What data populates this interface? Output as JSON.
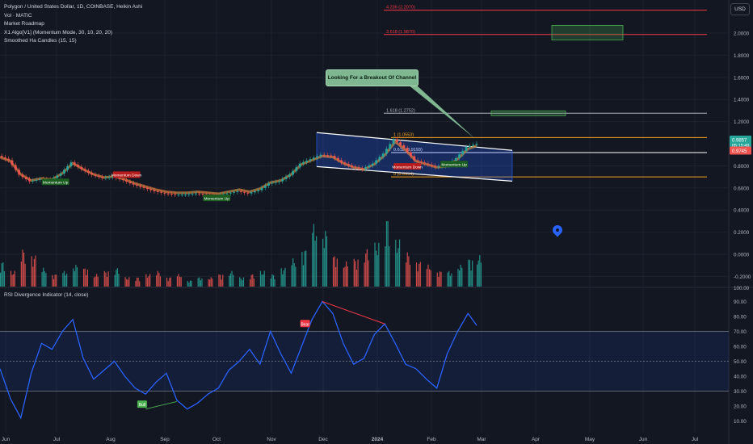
{
  "legend": {
    "symbol": "Polygon / United States Dollar, 1D, COINBASE, Heikin Ashi",
    "vol": "Vol · MATIC",
    "indicators": [
      "Market Roadmap",
      "X1 Algo[V1] (Momentum Mode, 30, 10, 20, 20)",
      "Smoothed Ha Candles (15, 15)"
    ]
  },
  "currency_button": "USD",
  "callout": "Looking For a Breakout Of Channel",
  "colors": {
    "up": "#26a69a",
    "down": "#ef5350",
    "rsi": "#2962ff",
    "fib": "#f7a21b",
    "channel": "#ffffff",
    "accent": "#787b86"
  },
  "chart_data": [
    {
      "type": "line",
      "panel": "price",
      "x_ticks": [
        "Jun",
        "Jul",
        "Aug",
        "Sep",
        "Oct",
        "Nov",
        "Dec",
        "2024",
        "Feb",
        "Mar",
        "Apr",
        "May",
        "Jun",
        "Jul"
      ],
      "price_ticks": [
        "2.0000",
        "1.8000",
        "1.6000",
        "1.4000",
        "1.2000",
        "0.8000",
        "0.6000",
        "0.4000",
        "0.2000",
        "0.0000",
        "-0.2000"
      ],
      "ylim": [
        -0.28,
        2.45
      ],
      "price_badges": [
        {
          "label": "0.9857",
          "value": 0.9857,
          "sub": "05:15:49",
          "color": "#26a69a"
        },
        {
          "label": "0.9745",
          "value": 0.9745,
          "color": "#ef5350"
        }
      ],
      "fib_levels": [
        {
          "label": "4.236 (2.2070)",
          "value": 2.207,
          "color": "#f23645"
        },
        {
          "label": "3.618 (1.9870)",
          "value": 1.987,
          "color": "#f23645"
        },
        {
          "label": "1.618 (1.2752)",
          "value": 1.2752,
          "color": "#b2b5be"
        },
        {
          "label": "1 (1.0553)",
          "value": 1.0553,
          "color": "#f7a21b"
        },
        {
          "label": "0.618 (0.9193)",
          "value": 0.9193,
          "color": "#ffffff"
        },
        {
          "label": "0 (0.6994)",
          "value": 0.6994,
          "color": "#f7a21b"
        }
      ],
      "signals": [
        {
          "label": "Momentum Up",
          "x": 32,
          "y": 0.655,
          "color": "#1b5e20"
        },
        {
          "label": "Momentum Down",
          "x": 73,
          "y": 0.72,
          "color": "#b71c1c"
        },
        {
          "label": "Momentum Up",
          "x": 125,
          "y": 0.51,
          "color": "#1b5e20"
        },
        {
          "label": "Momentum Down",
          "x": 235,
          "y": 0.795,
          "color": "#b71c1c"
        },
        {
          "label": "Momentum Up",
          "x": 262,
          "y": 0.815,
          "color": "#1b5e20"
        }
      ],
      "series": [
        {
          "x": [
            0,
            6,
            12,
            18,
            24,
            30,
            36,
            42,
            48,
            54,
            60,
            66,
            72,
            78,
            84,
            90,
            96,
            102,
            108,
            114,
            120,
            126,
            132,
            138,
            144,
            150,
            156,
            162,
            168,
            174,
            180,
            186,
            192,
            198,
            204,
            210,
            216,
            222,
            228,
            234,
            240,
            246,
            252,
            258,
            264,
            270,
            275
          ],
          "values": [
            0.89,
            0.85,
            0.72,
            0.66,
            0.68,
            0.67,
            0.73,
            0.83,
            0.77,
            0.72,
            0.69,
            0.7,
            0.67,
            0.63,
            0.6,
            0.57,
            0.55,
            0.54,
            0.54,
            0.55,
            0.54,
            0.53,
            0.55,
            0.57,
            0.55,
            0.58,
            0.64,
            0.66,
            0.72,
            0.82,
            0.86,
            0.9,
            0.89,
            0.83,
            0.79,
            0.77,
            0.82,
            0.91,
            1.04,
            0.96,
            0.85,
            0.82,
            0.79,
            0.8,
            0.87,
            0.97,
            1.0
          ]
        }
      ]
    },
    {
      "type": "bar",
      "panel": "volume",
      "series": [
        {
          "values": [
            0.08,
            0.05,
            0.12,
            0.1,
            0.06,
            0.04,
            0.05,
            0.07,
            0.06,
            0.04,
            0.05,
            0.06,
            0.03,
            0.03,
            0.04,
            0.05,
            0.03,
            0.04,
            0.02,
            0.03,
            0.03,
            0.04,
            0.05,
            0.03,
            0.04,
            0.05,
            0.04,
            0.06,
            0.09,
            0.12,
            0.2,
            0.18,
            0.1,
            0.08,
            0.09,
            0.12,
            0.14,
            0.22,
            0.15,
            0.11,
            0.08,
            0.07,
            0.05,
            0.05,
            0.07,
            0.09,
            0.1
          ]
        }
      ]
    },
    {
      "type": "line",
      "panel": "rsi",
      "title": "RSI Divergence Indicator (14, close)",
      "rsi_ticks": [
        "100.00",
        "90.00",
        "80.00",
        "70.00",
        "60.00",
        "50.00",
        "40.00",
        "30.00",
        "20.00",
        "10.00"
      ],
      "ylim": [
        0,
        100
      ],
      "bands": [
        70,
        50,
        30
      ],
      "labels": [
        {
          "label": "Bear",
          "x": 176,
          "y": 75,
          "color": "#f23645"
        },
        {
          "label": "Bull",
          "x": 82,
          "y": 21,
          "color": "#4caf50"
        }
      ],
      "series": [
        {
          "x": [
            0,
            6,
            12,
            18,
            24,
            30,
            36,
            42,
            48,
            54,
            60,
            66,
            72,
            78,
            84,
            90,
            96,
            102,
            108,
            114,
            120,
            126,
            132,
            138,
            144,
            150,
            156,
            162,
            168,
            174,
            180,
            186,
            192,
            198,
            204,
            210,
            216,
            222,
            228,
            234,
            240,
            246,
            252,
            258,
            264,
            270,
            275
          ],
          "values": [
            45,
            25,
            12,
            42,
            62,
            58,
            70,
            78,
            52,
            38,
            44,
            50,
            40,
            32,
            28,
            36,
            42,
            24,
            18,
            22,
            28,
            32,
            44,
            50,
            58,
            48,
            70,
            55,
            42,
            60,
            78,
            90,
            82,
            62,
            48,
            52,
            68,
            75,
            62,
            48,
            45,
            38,
            32,
            55,
            70,
            82,
            74
          ]
        }
      ]
    }
  ]
}
